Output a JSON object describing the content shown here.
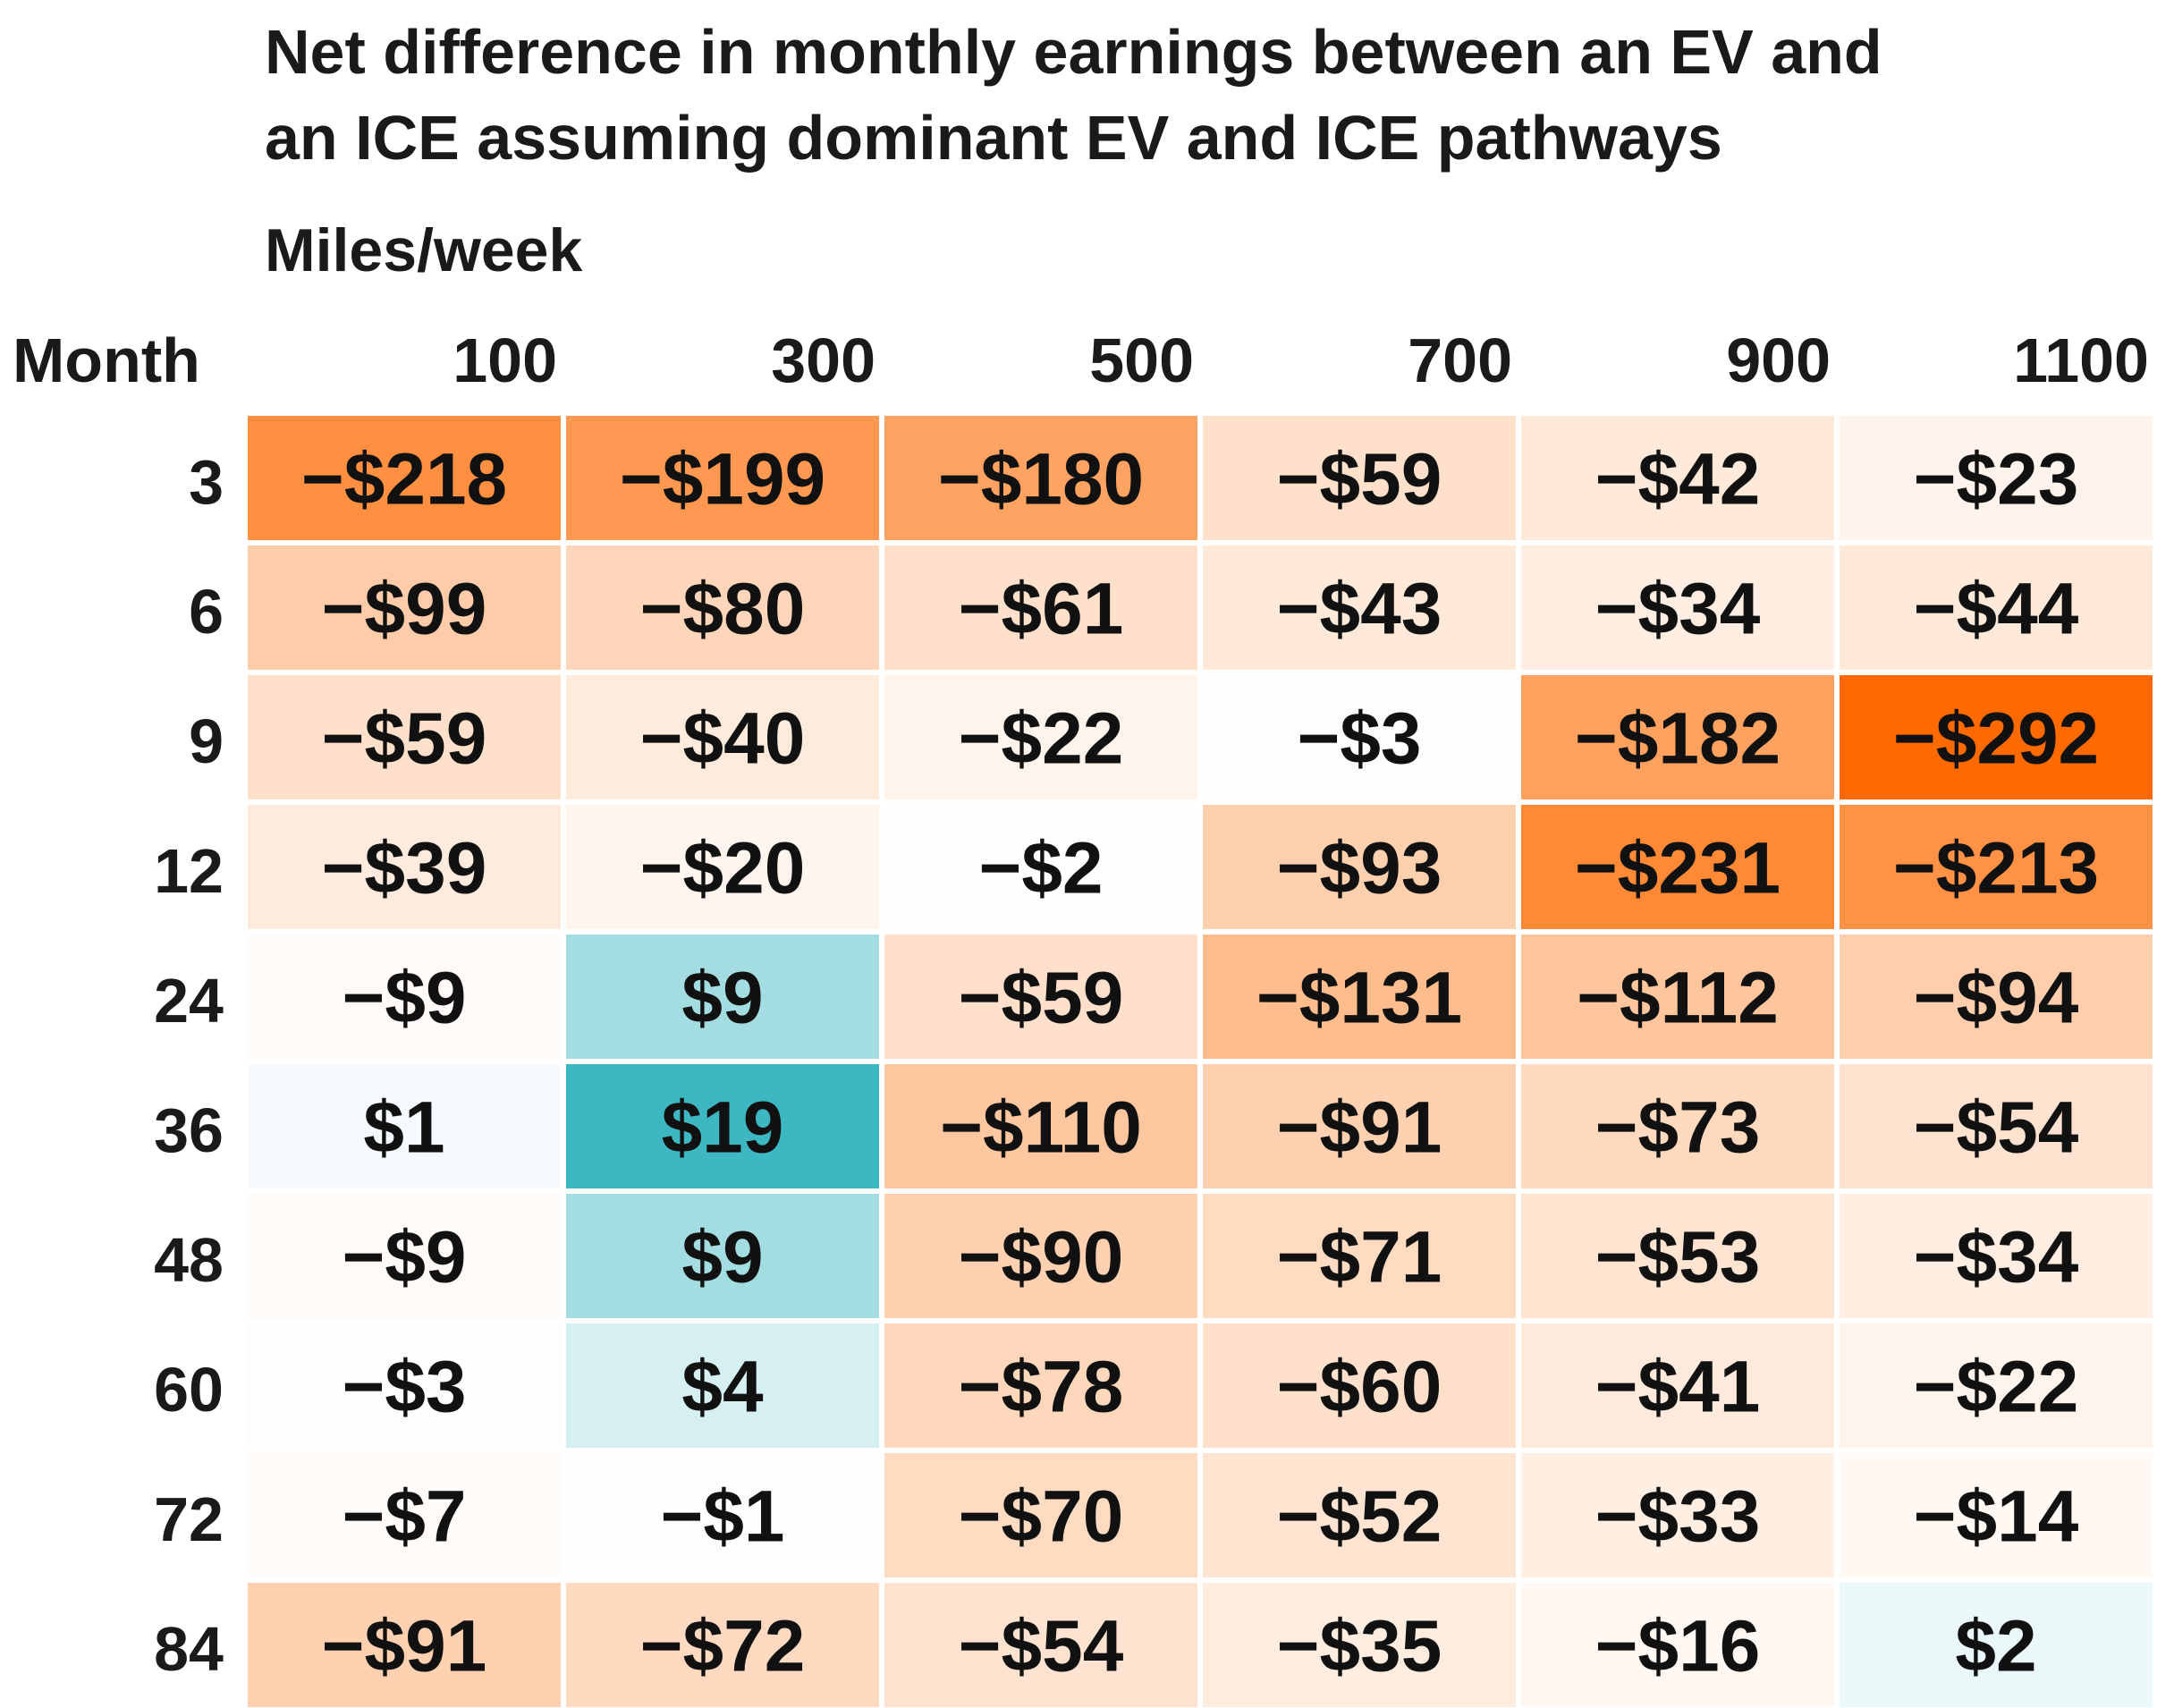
{
  "chart_data": {
    "type": "heatmap",
    "title": "Net difference in monthly earnings between an EV and an ICE assuming dominant EV and ICE pathways",
    "title_lines": [
      "Net difference in monthly earnings between an EV and",
      "an ICE assuming dominant EV and ICE pathways"
    ],
    "xlabel": "Miles/week",
    "ylabel": "Month",
    "x": [
      "100",
      "300",
      "500",
      "700",
      "900",
      "1100"
    ],
    "y": [
      "3",
      "6",
      "9",
      "12",
      "24",
      "36",
      "48",
      "60",
      "72",
      "84"
    ],
    "values": [
      [
        -218,
        -199,
        -180,
        -59,
        -42,
        -23
      ],
      [
        -99,
        -80,
        -61,
        -43,
        -34,
        -44
      ],
      [
        -59,
        -40,
        -22,
        -3,
        -182,
        -292
      ],
      [
        -39,
        -20,
        -2,
        -93,
        -231,
        -213
      ],
      [
        -9,
        9,
        -59,
        -131,
        -112,
        -94
      ],
      [
        1,
        19,
        -110,
        -91,
        -73,
        -54
      ],
      [
        -9,
        9,
        -90,
        -71,
        -53,
        -34
      ],
      [
        -3,
        4,
        -78,
        -60,
        -41,
        -22
      ],
      [
        -7,
        -1,
        -70,
        -52,
        -33,
        -14
      ],
      [
        -91,
        -72,
        -54,
        -35,
        -16,
        2
      ]
    ],
    "labels": [
      [
        "−$218",
        "−$199",
        "−$180",
        "−$59",
        "−$42",
        "−$23"
      ],
      [
        "−$99",
        "−$80",
        "−$61",
        "−$43",
        "−$34",
        "−$44"
      ],
      [
        "−$59",
        "−$40",
        "−$22",
        "−$3",
        "−$182",
        "−$292"
      ],
      [
        "−$39",
        "−$20",
        "−$2",
        "−$93",
        "−$231",
        "−$213"
      ],
      [
        "−$9",
        "$9",
        "−$59",
        "−$131",
        "−$112",
        "−$94"
      ],
      [
        "$1",
        "$19",
        "−$110",
        "−$91",
        "−$73",
        "−$54"
      ],
      [
        "−$9",
        "$9",
        "−$90",
        "−$71",
        "−$53",
        "−$34"
      ],
      [
        "−$3",
        "$4",
        "−$78",
        "−$60",
        "−$41",
        "−$22"
      ],
      [
        "−$7",
        "−$1",
        "−$70",
        "−$52",
        "−$33",
        "−$14"
      ],
      [
        "−$91",
        "−$72",
        "−$54",
        "−$35",
        "−$16",
        "$2"
      ]
    ],
    "colors": {
      "negative_max": "#ff6a00",
      "positive_max": "#3db8c2",
      "neutral": "#ffffff"
    },
    "color_range": {
      "negative_limit": -292,
      "positive_limit": 19
    }
  }
}
